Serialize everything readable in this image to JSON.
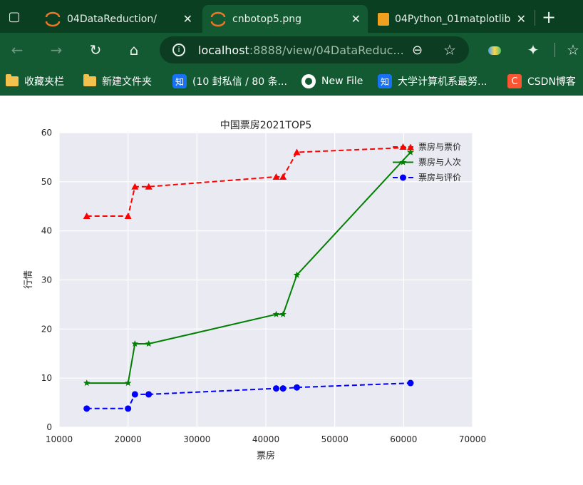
{
  "browser": {
    "tabs": [
      {
        "title": "04DataReduction/",
        "active": false,
        "icon": "jupyter-icon"
      },
      {
        "title": "cnbotop5.png",
        "active": true,
        "icon": "jupyter-icon"
      },
      {
        "title": "04Python_01matplotlib",
        "active": false,
        "icon": "notebook-icon"
      }
    ],
    "new_tab_label": "+",
    "address": {
      "host": "localhost",
      "path": ":8888/view/04DataReduc..."
    },
    "favorites": [
      {
        "label": "收藏夹栏",
        "icon": "folder-icon"
      },
      {
        "label": "新建文件夹",
        "icon": "folder-icon"
      },
      {
        "label": "(10 封私信 / 80 条...",
        "icon": "zhihu-icon"
      },
      {
        "label": "New File",
        "icon": "github-icon"
      },
      {
        "label": "大学计算机系最努...",
        "icon": "zhihu-icon"
      },
      {
        "label": "CSDN博客",
        "icon": "csdn-icon"
      }
    ],
    "zhihu_glyph": "知",
    "csdn_glyph": "C"
  },
  "chart_data": {
    "type": "line",
    "title": "中国票房2021TOP5",
    "xlabel": "票房",
    "ylabel": "行情",
    "xlim": [
      10000,
      70000
    ],
    "ylim": [
      0,
      60
    ],
    "xticks": [
      10000,
      20000,
      30000,
      40000,
      50000,
      60000,
      70000
    ],
    "yticks": [
      0,
      10,
      20,
      30,
      40,
      50,
      60
    ],
    "grid": true,
    "legend_position": "top-right",
    "x": [
      14000,
      20000,
      21000,
      23000,
      41500,
      42500,
      44500,
      61000
    ],
    "series": [
      {
        "name": "票房与票价",
        "values": [
          43,
          43,
          49,
          49,
          51,
          51,
          56,
          57
        ],
        "color": "#ff0000",
        "linestyle": "dashed",
        "marker": "triangle"
      },
      {
        "name": "票房与人次",
        "values": [
          9,
          9,
          17,
          17,
          23,
          23,
          31,
          56
        ],
        "color": "#008000",
        "linestyle": "solid",
        "marker": "star"
      },
      {
        "name": "票房与评价",
        "values": [
          3.8,
          3.8,
          6.7,
          6.7,
          7.9,
          7.9,
          8.1,
          9
        ],
        "color": "#0000ff",
        "linestyle": "dashed",
        "marker": "circle"
      }
    ]
  }
}
